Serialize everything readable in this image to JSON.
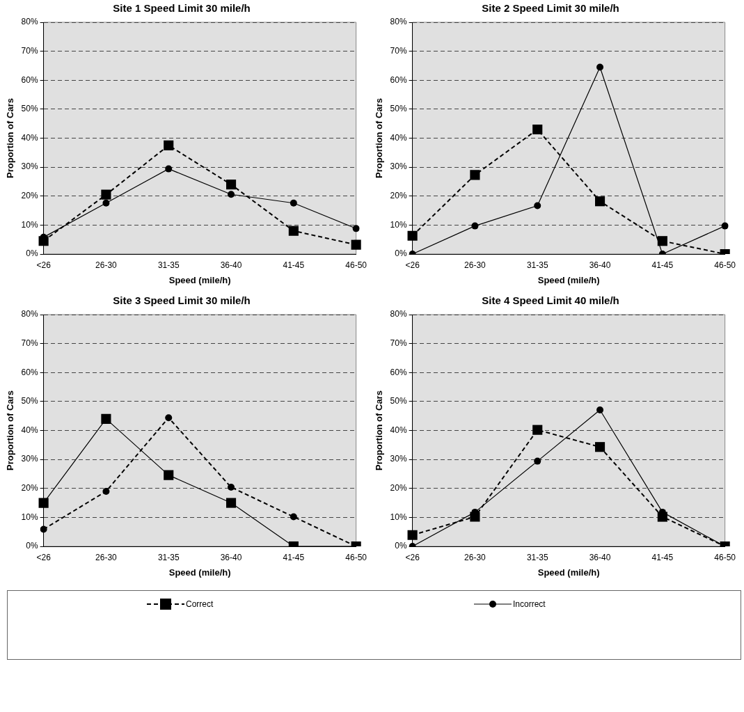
{
  "chart_data": [
    {
      "type": "line",
      "title": "Site 1 Speed Limit 30 mile/h",
      "xlabel": "Speed (mile/h)",
      "ylabel": "Proportion of Cars",
      "categories": [
        "<26",
        "26-30",
        "31-35",
        "36-40",
        "41-45",
        "46-50"
      ],
      "ylim": [
        0,
        80
      ],
      "yticks": [
        {
          "value": 0,
          "label": "0%"
        },
        {
          "value": 10,
          "label": "10%"
        },
        {
          "value": 20,
          "label": "20%"
        },
        {
          "value": 30,
          "label": "30%"
        },
        {
          "value": 40,
          "label": "40%"
        },
        {
          "value": 50,
          "label": "50%"
        },
        {
          "value": 60,
          "label": "60%"
        },
        {
          "value": 70,
          "label": "70%"
        },
        {
          "value": 80,
          "label": "80%"
        }
      ],
      "grid": "y",
      "legend": "bottom",
      "series": [
        {
          "name": "Correct",
          "color": "#000000",
          "marker": "square",
          "line_style": "dashed",
          "values": [
            4.5,
            20.5,
            37.5,
            24,
            8,
            3.2
          ]
        },
        {
          "name": "Incorrect",
          "color": "#000000",
          "marker": "circle",
          "line_style": "solid",
          "values": [
            5.8,
            17.6,
            29.4,
            20.6,
            17.6,
            8.8
          ]
        }
      ]
    },
    {
      "type": "line",
      "title": "Site 2 Speed Limit 30 mile/h",
      "xlabel": "Speed (mile/h)",
      "ylabel": "Proportion of Cars",
      "categories": [
        "<26",
        "26-30",
        "31-35",
        "36-40",
        "41-45",
        "46-50"
      ],
      "ylim": [
        0,
        80
      ],
      "yticks": [
        {
          "value": 0,
          "label": "0%"
        },
        {
          "value": 10,
          "label": "10%"
        },
        {
          "value": 20,
          "label": "20%"
        },
        {
          "value": 30,
          "label": "30%"
        },
        {
          "value": 40,
          "label": "40%"
        },
        {
          "value": 50,
          "label": "50%"
        },
        {
          "value": 60,
          "label": "60%"
        },
        {
          "value": 70,
          "label": "70%"
        },
        {
          "value": 80,
          "label": "80%"
        }
      ],
      "grid": "y",
      "series": [
        {
          "color": "#000000",
          "marker": "square",
          "line_style": "dashed",
          "values": [
            6.3,
            27.3,
            43,
            18.2,
            4.5,
            0
          ]
        },
        {
          "color": "#000000",
          "marker": "circle",
          "line_style": "solid",
          "values": [
            0,
            9.7,
            16.7,
            64.5,
            0,
            9.7
          ]
        }
      ]
    },
    {
      "type": "line",
      "title": "Site 3 Speed Limit 30 mile/h",
      "xlabel": "Speed (mile/h)",
      "ylabel": "Proportion of Cars",
      "categories": [
        "<26",
        "26-30",
        "31-35",
        "36-40",
        "41-45",
        "46-50"
      ],
      "ylim": [
        0,
        80
      ],
      "yticks": [
        {
          "value": 0,
          "label": "0%"
        },
        {
          "value": 10,
          "label": "10%"
        },
        {
          "value": 20,
          "label": "20%"
        },
        {
          "value": 30,
          "label": "30%"
        },
        {
          "value": 40,
          "label": "40%"
        },
        {
          "value": 50,
          "label": "50%"
        },
        {
          "value": 60,
          "label": "60%"
        },
        {
          "value": 70,
          "label": "70%"
        },
        {
          "value": 80,
          "label": "80%"
        }
      ],
      "grid": "y",
      "series": [
        {
          "color": "#000000",
          "marker": "square",
          "line_style": "solid",
          "values": [
            15,
            44,
            24.6,
            15,
            0,
            0
          ]
        },
        {
          "color": "#000000",
          "marker": "circle",
          "line_style": "dashed",
          "values": [
            5.9,
            19,
            44.4,
            20.4,
            10.2,
            0
          ]
        }
      ]
    },
    {
      "type": "line",
      "title": "Site 4 Speed Limit 40 mile/h",
      "xlabel": "Speed (mile/h)",
      "ylabel": "Proportion of Cars",
      "categories": [
        "<26",
        "26-30",
        "31-35",
        "36-40",
        "41-45",
        "46-50"
      ],
      "ylim": [
        0,
        80
      ],
      "yticks": [
        {
          "value": 0,
          "label": "0%"
        },
        {
          "value": 10,
          "label": "10%"
        },
        {
          "value": 20,
          "label": "20%"
        },
        {
          "value": 30,
          "label": "30%"
        },
        {
          "value": 40,
          "label": "40%"
        },
        {
          "value": 50,
          "label": "50%"
        },
        {
          "value": 60,
          "label": "60%"
        },
        {
          "value": 70,
          "label": "70%"
        },
        {
          "value": 80,
          "label": "80%"
        }
      ],
      "grid": "y",
      "series": [
        {
          "color": "#000000",
          "marker": "square",
          "line_style": "dashed",
          "values": [
            3.9,
            10.2,
            40.2,
            34.3,
            10.2,
            0
          ]
        },
        {
          "color": "#000000",
          "marker": "circle",
          "line_style": "solid",
          "values": [
            0,
            11.8,
            29.4,
            47.1,
            11.8,
            0
          ]
        }
      ]
    }
  ]
}
